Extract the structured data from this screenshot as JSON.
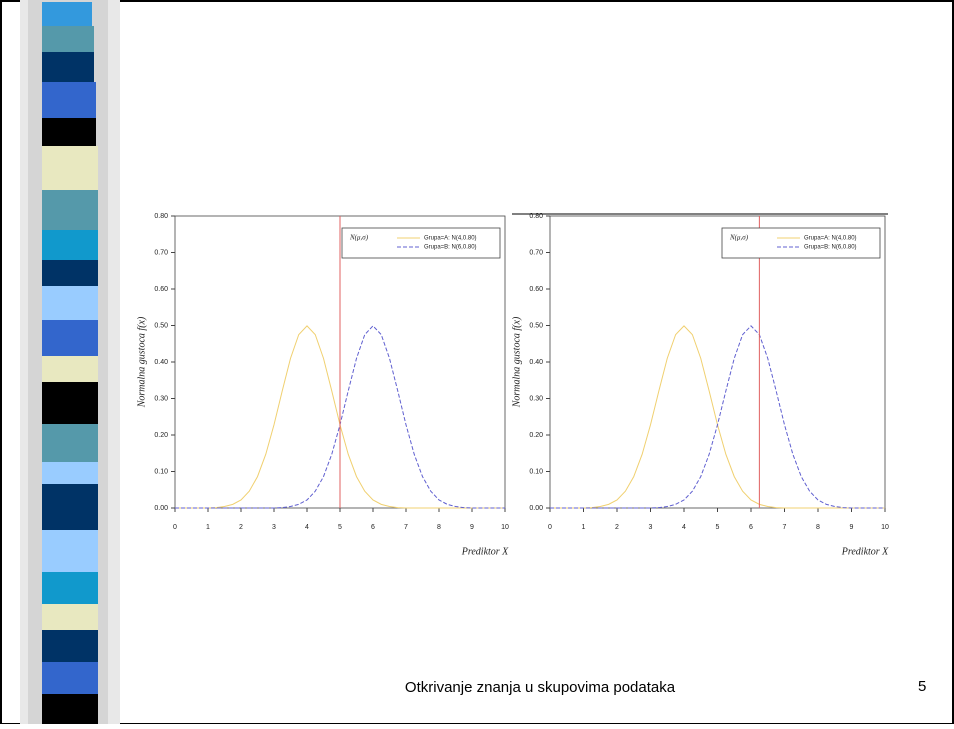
{
  "chart_data": [
    {
      "type": "line",
      "xlabel": "Prediktor X",
      "ylabel": "Normalna gustoca f(x)",
      "legend_title": "N(μ,σ)",
      "xlim": [
        0,
        10
      ],
      "ylim": [
        0,
        0.8
      ],
      "xticks": [
        0,
        1,
        2,
        3,
        4,
        5,
        6,
        7,
        8,
        9,
        10
      ],
      "yticks": [
        {
          "value": 0,
          "label": "0.00"
        },
        {
          "value": 0.1,
          "label": "0.10"
        },
        {
          "value": 0.2,
          "label": "0.20"
        },
        {
          "value": 0.3,
          "label": "0.30"
        },
        {
          "value": 0.4,
          "label": "0.40"
        },
        {
          "value": 0.5,
          "label": "0.50"
        },
        {
          "value": 0.6,
          "label": "0.60"
        },
        {
          "value": 0.7,
          "label": "0.70"
        },
        {
          "value": 0.8,
          "label": "0.80"
        }
      ],
      "vline": 5,
      "vline_color": "#e06060",
      "x": [
        0,
        0.25,
        0.5,
        0.75,
        1,
        1.25,
        1.5,
        1.75,
        2,
        2.25,
        2.5,
        2.75,
        3,
        3.25,
        3.5,
        3.75,
        4,
        4.25,
        4.5,
        4.75,
        5,
        5.25,
        5.5,
        5.75,
        6,
        6.25,
        6.5,
        6.75,
        7,
        7.25,
        7.5,
        7.75,
        8,
        8.25,
        8.5,
        8.75,
        9,
        9.25,
        9.5,
        9.75,
        10
      ],
      "series": [
        {
          "name": "Grupa=A: N(4,0.80)",
          "color": "#f0d070",
          "dash": false,
          "values": [
            0,
            0,
            0,
            0,
            0,
            0.001,
            0.004,
            0.01,
            0.022,
            0.046,
            0.086,
            0.147,
            0.228,
            0.321,
            0.41,
            0.475,
            0.499,
            0.475,
            0.41,
            0.321,
            0.228,
            0.147,
            0.086,
            0.046,
            0.022,
            0.01,
            0.004,
            0.001,
            0,
            0,
            0,
            0,
            0,
            0,
            0,
            0,
            0,
            0,
            0,
            0,
            0
          ]
        },
        {
          "name": "Grupa=B: N(6,0.80)",
          "color": "#6060d0",
          "dash": true,
          "values": [
            0,
            0,
            0,
            0,
            0,
            0,
            0,
            0,
            0,
            0,
            0,
            0,
            0,
            0.001,
            0.004,
            0.01,
            0.022,
            0.046,
            0.086,
            0.147,
            0.228,
            0.321,
            0.41,
            0.475,
            0.499,
            0.475,
            0.41,
            0.321,
            0.228,
            0.147,
            0.086,
            0.046,
            0.022,
            0.01,
            0.004,
            0.001,
            0,
            0,
            0,
            0,
            0
          ]
        }
      ]
    },
    {
      "type": "line",
      "xlabel": "Prediktor X",
      "ylabel": "Normalna gustoca f(x)",
      "legend_title": "N(μ,σ)",
      "xlim": [
        0,
        10
      ],
      "ylim": [
        0,
        0.8
      ],
      "xticks": [
        0,
        1,
        2,
        3,
        4,
        5,
        6,
        7,
        8,
        9,
        10
      ],
      "yticks": [
        {
          "value": 0,
          "label": "0.00"
        },
        {
          "value": 0.1,
          "label": "0.10"
        },
        {
          "value": 0.2,
          "label": "0.20"
        },
        {
          "value": 0.3,
          "label": "0.30"
        },
        {
          "value": 0.4,
          "label": "0.40"
        },
        {
          "value": 0.5,
          "label": "0.50"
        },
        {
          "value": 0.6,
          "label": "0.60"
        },
        {
          "value": 0.7,
          "label": "0.70"
        },
        {
          "value": 0.8,
          "label": "0.80"
        }
      ],
      "vline": 6.25,
      "vline_color": "#e06060",
      "x": [
        0,
        0.25,
        0.5,
        0.75,
        1,
        1.25,
        1.5,
        1.75,
        2,
        2.25,
        2.5,
        2.75,
        3,
        3.25,
        3.5,
        3.75,
        4,
        4.25,
        4.5,
        4.75,
        5,
        5.25,
        5.5,
        5.75,
        6,
        6.25,
        6.5,
        6.75,
        7,
        7.25,
        7.5,
        7.75,
        8,
        8.25,
        8.5,
        8.75,
        9,
        9.25,
        9.5,
        9.75,
        10
      ],
      "series": [
        {
          "name": "Grupa=A: N(4,0.80)",
          "color": "#f0d070",
          "dash": false,
          "values": [
            0,
            0,
            0,
            0,
            0,
            0.001,
            0.004,
            0.01,
            0.022,
            0.046,
            0.086,
            0.147,
            0.228,
            0.321,
            0.41,
            0.475,
            0.499,
            0.475,
            0.41,
            0.321,
            0.228,
            0.147,
            0.086,
            0.046,
            0.022,
            0.01,
            0.004,
            0.001,
            0,
            0,
            0,
            0,
            0,
            0,
            0,
            0,
            0,
            0,
            0,
            0,
            0
          ]
        },
        {
          "name": "Grupa=B: N(6,0.80)",
          "color": "#6060d0",
          "dash": true,
          "values": [
            0,
            0,
            0,
            0,
            0,
            0,
            0,
            0,
            0,
            0,
            0,
            0,
            0,
            0.001,
            0.004,
            0.01,
            0.022,
            0.046,
            0.086,
            0.147,
            0.228,
            0.321,
            0.41,
            0.475,
            0.499,
            0.475,
            0.41,
            0.321,
            0.228,
            0.147,
            0.086,
            0.046,
            0.022,
            0.01,
            0.004,
            0.001,
            0,
            0,
            0,
            0,
            0
          ]
        }
      ]
    }
  ],
  "footer": {
    "text": "Otkrivanje znanja u skupovima podataka",
    "page": "5"
  }
}
